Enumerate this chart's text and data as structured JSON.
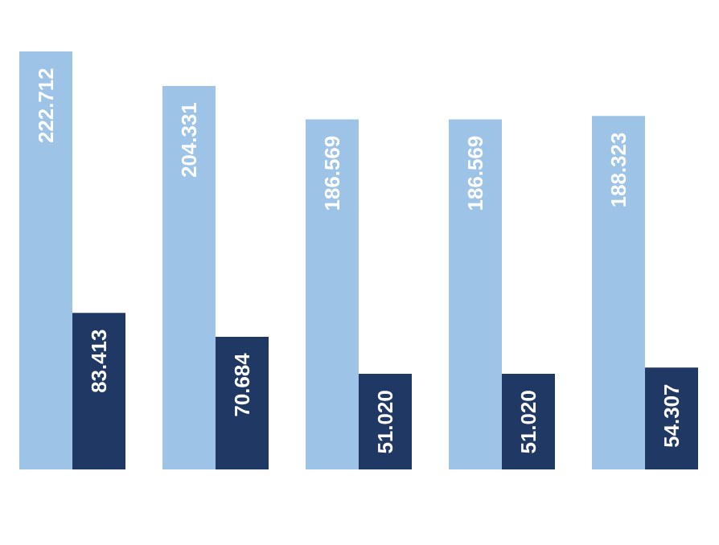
{
  "chart_data": {
    "type": "bar",
    "categories": [
      null,
      null,
      null,
      null,
      null
    ],
    "series": [
      {
        "color": "#9dc3e6",
        "values": [
          222.712,
          204.331,
          186.569,
          186.569,
          188.323
        ],
        "value_labels": [
          "222.712",
          "204.331",
          "186.569",
          "186.569",
          "188.323"
        ]
      },
      {
        "color": "#1f3864",
        "values": [
          83.413,
          70.684,
          51.02,
          51.02,
          54.307
        ],
        "value_labels": [
          "83.413",
          "70.684",
          "51.020",
          "51.020",
          "54.307"
        ]
      }
    ]
  }
}
